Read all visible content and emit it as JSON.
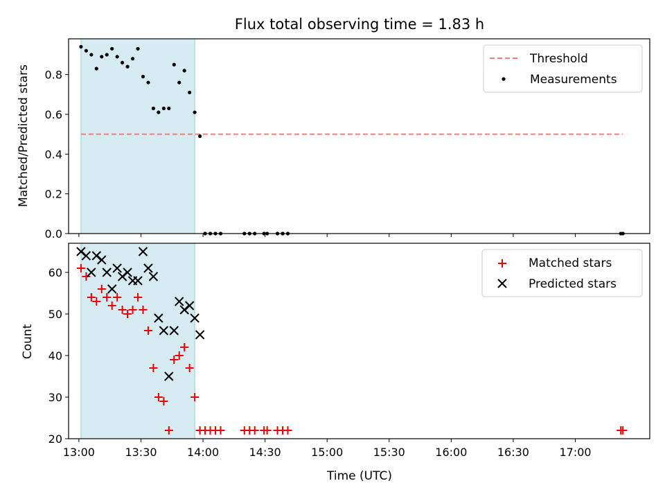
{
  "chart_data": {
    "type": "scatter",
    "title": "Flux total observing time = 1.83 h",
    "xlabel": "Time (UTC)",
    "xlim_minutes": [
      775,
      1056
    ],
    "x_ticks": [
      {
        "value": 780,
        "label": "13:00"
      },
      {
        "value": 810,
        "label": "13:30"
      },
      {
        "value": 840,
        "label": "14:00"
      },
      {
        "value": 870,
        "label": "14:30"
      },
      {
        "value": 900,
        "label": "15:00"
      },
      {
        "value": 930,
        "label": "15:30"
      },
      {
        "value": 960,
        "label": "16:00"
      },
      {
        "value": 990,
        "label": "16:30"
      },
      {
        "value": 1020,
        "label": "17:00"
      }
    ],
    "observing_span_minutes": [
      781,
      836
    ],
    "panels": [
      {
        "name": "ratio",
        "ylabel": "Matched/Predicted stars",
        "ylim": [
          0,
          0.98
        ],
        "y_ticks": [
          0.0,
          0.2,
          0.4,
          0.6,
          0.8
        ],
        "y_tick_labels": [
          "0.0",
          "0.2",
          "0.4",
          "0.6",
          "0.8"
        ],
        "threshold": {
          "name": "Threshold",
          "value": 0.5,
          "x_range": [
            781,
            1043
          ],
          "color": "#f47c7c"
        },
        "series": [
          {
            "name": "Measurements",
            "marker": "dot",
            "color": "#000000",
            "x": [
              781,
              783.5,
              786,
              788.5,
              791,
              793.5,
              796,
              798.5,
              801,
              803.5,
              806,
              808.5,
              811,
              813.5,
              816,
              818.5,
              821,
              823.5,
              826,
              828.5,
              831,
              833.5,
              836,
              838.5,
              841,
              843.5,
              846,
              848.5,
              860,
              862.5,
              865,
              869.5,
              871,
              876,
              878.5,
              881,
              1042,
              1043
            ],
            "y": [
              0.94,
              0.92,
              0.9,
              0.83,
              0.89,
              0.9,
              0.93,
              0.89,
              0.86,
              0.84,
              0.88,
              0.93,
              0.79,
              0.76,
              0.63,
              0.61,
              0.63,
              0.63,
              0.85,
              0.76,
              0.82,
              0.71,
              0.61,
              0.49,
              0,
              0,
              0,
              0,
              0,
              0,
              0,
              0,
              0,
              0,
              0,
              0,
              0,
              0
            ]
          }
        ]
      },
      {
        "name": "counts",
        "ylabel": "Count",
        "ylim": [
          20,
          67
        ],
        "y_ticks": [
          20,
          30,
          40,
          50,
          60
        ],
        "y_tick_labels": [
          "20",
          "30",
          "40",
          "50",
          "60"
        ],
        "series": [
          {
            "name": "Matched stars",
            "marker": "plus",
            "color": "#ee0000",
            "x": [
              781,
              783.5,
              786,
              788.5,
              791,
              793.5,
              796,
              798.5,
              801,
              803.5,
              806,
              808.5,
              811,
              813.5,
              816,
              818.5,
              821,
              823.5,
              826,
              828.5,
              831,
              833.5,
              836,
              838.5,
              841,
              843.5,
              846,
              848.5,
              860,
              862.5,
              865,
              869.5,
              871,
              876,
              878.5,
              881,
              1042,
              1043
            ],
            "y": [
              61,
              59,
              54,
              53,
              56,
              54,
              52,
              54,
              51,
              50,
              51,
              54,
              51,
              46,
              37,
              30,
              29,
              22,
              39,
              40,
              42,
              37,
              30,
              22,
              22,
              22,
              22,
              22,
              22,
              22,
              22,
              22,
              22,
              22,
              22,
              22,
              22,
              22
            ]
          },
          {
            "name": "Predicted stars",
            "marker": "cross",
            "color": "#000000",
            "x": [
              781,
              783.5,
              786,
              788.5,
              791,
              793.5,
              796,
              798.5,
              801,
              803.5,
              806,
              808.5,
              811,
              813.5,
              816,
              818.5,
              821,
              823.5,
              826,
              828.5,
              831,
              833.5,
              836,
              838.5
            ],
            "y": [
              65,
              64,
              60,
              64,
              63,
              60,
              56,
              61,
              59,
              60,
              58,
              58,
              65,
              61,
              59,
              49,
              46,
              35,
              46,
              53,
              51,
              52,
              49,
              45
            ]
          }
        ]
      }
    ]
  }
}
